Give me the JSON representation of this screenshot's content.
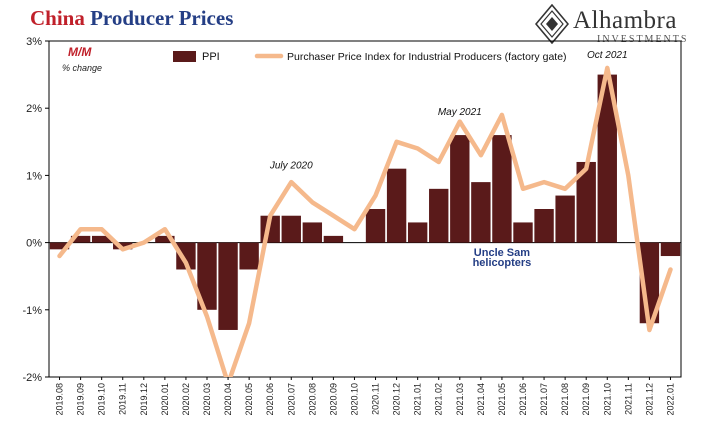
{
  "header": {
    "title_part1": "China",
    "title_part2": "Producer Prices",
    "logo_name": "Alhambra",
    "logo_sub": "INVESTMENTS"
  },
  "chart_data": {
    "type": "bar+line",
    "categories": [
      "2019.08",
      "2019.09",
      "2019.10",
      "2019.11",
      "2019.12",
      "2020.01",
      "2020.02",
      "2020.03",
      "2020.04",
      "2020.05",
      "2020.06",
      "2020.07",
      "2020.08",
      "2020.09",
      "2020.10",
      "2020.11",
      "2020.12",
      "2021.01",
      "2021.02",
      "2021.03",
      "2021.04",
      "2021.05",
      "2021.06",
      "2021.07",
      "2021.08",
      "2021.09",
      "2021.10",
      "2021.11",
      "2021.12",
      "2022.01"
    ],
    "series": [
      {
        "name": "PPI",
        "kind": "bar",
        "color": "#5a1a1a",
        "values": [
          -0.1,
          0.1,
          0.1,
          -0.1,
          0.0,
          0.1,
          -0.4,
          -1.0,
          -1.3,
          -0.4,
          0.4,
          0.4,
          0.3,
          0.1,
          0.0,
          0.5,
          1.1,
          0.3,
          0.8,
          1.6,
          0.9,
          1.6,
          0.3,
          0.5,
          0.7,
          1.2,
          2.5,
          null,
          -1.2,
          -0.2
        ]
      },
      {
        "name": "Purchaser Price Index for Industrial Producers (factory gate)",
        "kind": "line",
        "color": "#f5b98c",
        "values": [
          -0.2,
          0.2,
          0.2,
          -0.1,
          0.0,
          0.2,
          -0.3,
          -1.1,
          -2.1,
          -1.2,
          0.4,
          0.9,
          0.6,
          0.4,
          0.2,
          0.7,
          1.5,
          1.4,
          1.2,
          1.8,
          1.3,
          1.9,
          0.8,
          0.9,
          0.8,
          1.1,
          2.6,
          1.0,
          -1.3,
          -0.4
        ]
      }
    ],
    "ylabel": "M/M",
    "ylabel_sub": "% change",
    "ylim": [
      -2,
      3
    ],
    "yticks": [
      -2,
      -1,
      0,
      1,
      2,
      3
    ],
    "ytick_labels": [
      "-2%",
      "-1%",
      "0%",
      "1%",
      "2%",
      "3%"
    ],
    "grid": false,
    "legend_position": "top",
    "annotations": [
      {
        "text": "July 2020",
        "category": "2020.07",
        "y": 1.1
      },
      {
        "text": "May 2021",
        "category": "2021.03",
        "y": 1.9
      },
      {
        "text": "Oct 2021",
        "category": "2021.10",
        "y": 2.75
      },
      {
        "text": "Uncle Sam",
        "category": "2021.05",
        "y": -0.2,
        "color": "#243e85"
      },
      {
        "text": "helicopters",
        "category": "2021.05",
        "y": -0.35,
        "color": "#243e85"
      }
    ]
  }
}
